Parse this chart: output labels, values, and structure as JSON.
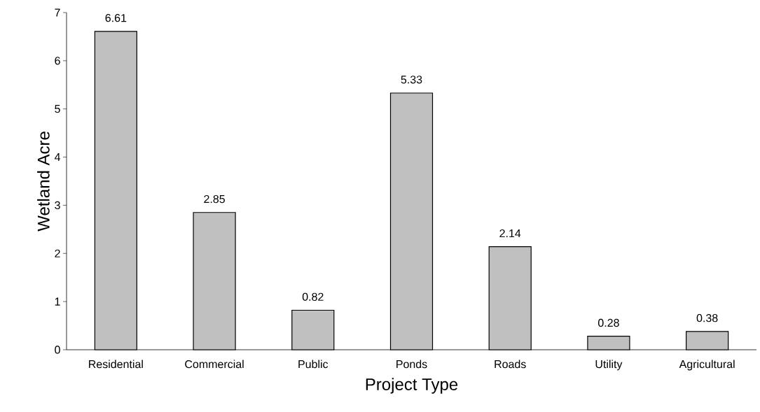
{
  "chart_data": {
    "type": "bar",
    "xlabel": "Project Type",
    "ylabel": "Wetland Acre",
    "categories": [
      "Residential",
      "Commercial",
      "Public",
      "Ponds",
      "Roads",
      "Utility",
      "Agricultural"
    ],
    "values": [
      6.61,
      2.85,
      0.82,
      5.33,
      2.14,
      0.28,
      0.38
    ],
    "color": "#c0c0c0",
    "ylim": [
      0,
      7
    ],
    "yticks": [
      0,
      1,
      2,
      3,
      4,
      5,
      6,
      7
    ],
    "data_labels": true,
    "grid": false
  }
}
